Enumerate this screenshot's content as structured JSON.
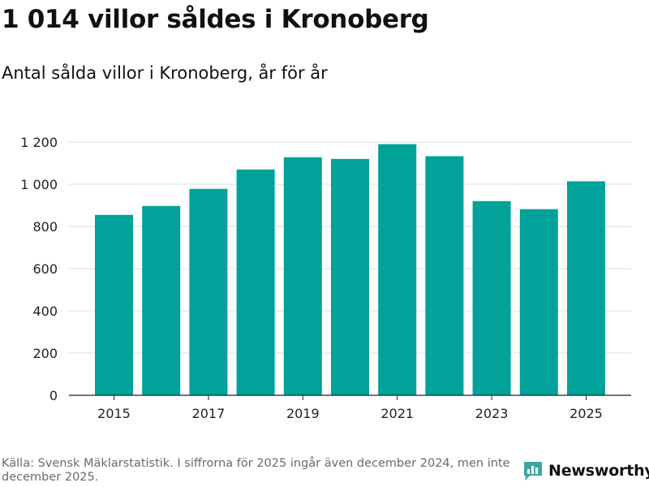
{
  "title": "1 014 villor såldes i Kronoberg",
  "subtitle": "Antal sålda villor i Kronoberg, år för år",
  "footer": {
    "source": "Källa: Svensk Mäklarstatistik. I siffrorna för 2025 ingår även december 2024, men inte december 2025."
  },
  "logo": {
    "text": "Newsworthy",
    "icon": "newsworthy-logo-icon"
  },
  "colors": {
    "bar": "#00a29a",
    "brand": "#3aa8a0",
    "grid": "#dddddd",
    "axis": "#222222"
  },
  "chart_data": {
    "type": "bar",
    "title": "Antal sålda villor i Kronoberg, år för år",
    "xlabel": "",
    "ylabel": "",
    "categories": [
      "2015",
      "2016",
      "2017",
      "2018",
      "2019",
      "2020",
      "2021",
      "2022",
      "2023",
      "2024",
      "2025"
    ],
    "values": [
      855,
      897,
      978,
      1070,
      1128,
      1120,
      1190,
      1133,
      920,
      882,
      1014
    ],
    "ylim": [
      0,
      1200
    ],
    "yticks": [
      0,
      200,
      400,
      600,
      800,
      1000,
      1200
    ],
    "ytick_labels": [
      "0",
      "200",
      "400",
      "600",
      "800",
      "1 000",
      "1 200"
    ],
    "xtick_labels": [
      "2015",
      "2017",
      "2019",
      "2021",
      "2023",
      "2025"
    ],
    "grid": true
  }
}
